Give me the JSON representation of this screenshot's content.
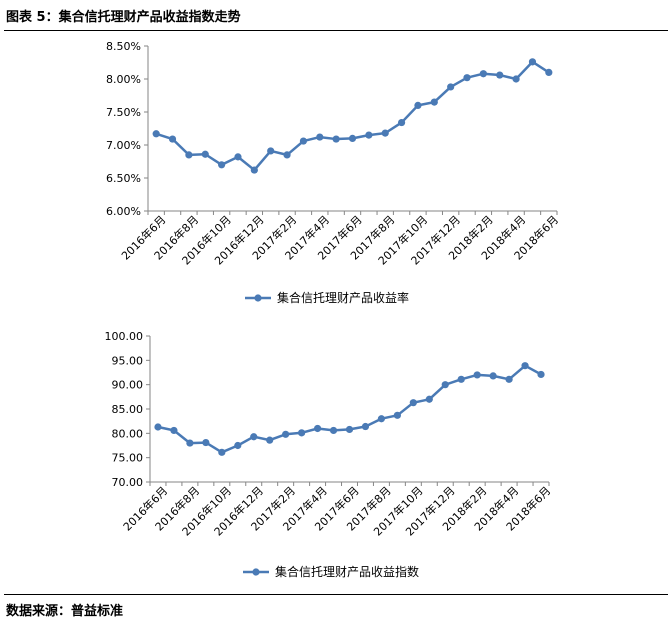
{
  "header": {
    "title": "图表 5：集合信托理财产品收益指数走势"
  },
  "footer": {
    "source": "数据来源：普益标准"
  },
  "colors": {
    "series": "#4a7ab5",
    "axis": "#868686",
    "rule": "#000000"
  },
  "chart_data": [
    {
      "type": "line",
      "x": [
        "2016年6月",
        "2016年7月",
        "2016年8月",
        "2016年9月",
        "2016年10月",
        "2016年11月",
        "2016年12月",
        "2017年1月",
        "2017年2月",
        "2017年3月",
        "2017年4月",
        "2017年5月",
        "2017年6月",
        "2017年7月",
        "2017年8月",
        "2017年9月",
        "2017年10月",
        "2017年11月",
        "2017年12月",
        "2018年1月",
        "2018年2月",
        "2018年3月",
        "2018年4月",
        "2018年5月",
        "2018年6月"
      ],
      "tick_labels": [
        "2016年6月",
        "2016年8月",
        "2016年10月",
        "2016年12月",
        "2017年2月",
        "2017年4月",
        "2017年6月",
        "2017年8月",
        "2017年10月",
        "2017年12月",
        "2018年2月",
        "2018年4月",
        "2018年6月"
      ],
      "series": [
        {
          "name": "集合信托理财产品收益率",
          "values": [
            7.17,
            7.09,
            6.85,
            6.86,
            6.7,
            6.82,
            6.62,
            6.91,
            6.85,
            7.06,
            7.12,
            7.09,
            7.1,
            7.15,
            7.18,
            7.34,
            7.6,
            7.65,
            7.88,
            8.02,
            8.08,
            8.06,
            8.0,
            8.26,
            8.1
          ]
        }
      ],
      "ylim": [
        6.0,
        8.5
      ],
      "yticks": [
        "6.00%",
        "6.50%",
        "7.00%",
        "7.50%",
        "8.00%",
        "8.50%"
      ],
      "ytick_values": [
        6.0,
        6.5,
        7.0,
        7.5,
        8.0,
        8.5
      ],
      "legend": "bottom",
      "grid": false
    },
    {
      "type": "line",
      "x": [
        "2016年6月",
        "2016年7月",
        "2016年8月",
        "2016年9月",
        "2016年10月",
        "2016年11月",
        "2016年12月",
        "2017年1月",
        "2017年2月",
        "2017年3月",
        "2017年4月",
        "2017年5月",
        "2017年6月",
        "2017年7月",
        "2017年8月",
        "2017年9月",
        "2017年10月",
        "2017年11月",
        "2017年12月",
        "2018年1月",
        "2018年2月",
        "2018年3月",
        "2018年4月",
        "2018年5月",
        "2018年6月"
      ],
      "tick_labels": [
        "2016年6月",
        "2016年8月",
        "2016年10月",
        "2016年12月",
        "2017年2月",
        "2017年4月",
        "2017年6月",
        "2017年8月",
        "2017年10月",
        "2017年12月",
        "2018年2月",
        "2018年4月",
        "2018年6月"
      ],
      "series": [
        {
          "name": "集合信托理财产品收益指数",
          "values": [
            81.3,
            80.6,
            78.0,
            78.1,
            76.1,
            77.5,
            79.3,
            78.6,
            79.8,
            80.1,
            81.0,
            80.6,
            80.8,
            81.4,
            83.0,
            83.7,
            86.3,
            87.0,
            90.0,
            91.1,
            92.0,
            91.8,
            91.1,
            93.9,
            92.1
          ]
        }
      ],
      "ylim": [
        70,
        100
      ],
      "yticks": [
        "70.00",
        "75.00",
        "80.00",
        "85.00",
        "90.00",
        "95.00",
        "100.00"
      ],
      "ytick_values": [
        70,
        75,
        80,
        85,
        90,
        95,
        100
      ],
      "legend": "bottom",
      "grid": false
    }
  ]
}
